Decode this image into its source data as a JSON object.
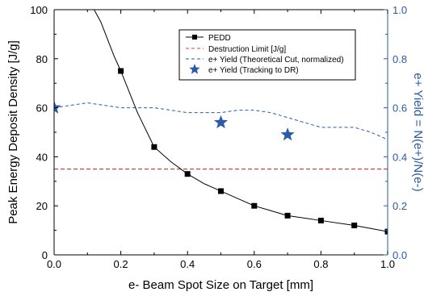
{
  "chart_data": {
    "type": "line",
    "title": "",
    "xlabel": "e- Beam Spot Size on Target [mm]",
    "ylabel": "Peak Energy Deposit Density [J/g]",
    "y2label": "e+ Yield = N(e+)/N(e-)",
    "xlim": [
      0,
      1.0
    ],
    "ylim": [
      0,
      100
    ],
    "y2lim": [
      0,
      1.0
    ],
    "x_ticks": [
      "0.0",
      "0.2",
      "0.4",
      "0.6",
      "0.8",
      "1.0"
    ],
    "y_ticks": [
      "0",
      "20",
      "40",
      "60",
      "80",
      "100"
    ],
    "y2_ticks": [
      "0.0",
      "0.2",
      "0.4",
      "0.6",
      "0.8",
      "1.0"
    ],
    "legend_position": "top-right",
    "series": [
      {
        "name": "PEDD",
        "axis": "left",
        "style": "line-square-marker",
        "color": "#000000",
        "marker_x": [
          0.2,
          0.3,
          0.4,
          0.5,
          0.6,
          0.7,
          0.8,
          0.9,
          1.0
        ],
        "marker_y": [
          75,
          44,
          33,
          26,
          20,
          16,
          14,
          12,
          9.5
        ],
        "curve_x": [
          0.12,
          0.14,
          0.16,
          0.18,
          0.2,
          0.25,
          0.3,
          0.35,
          0.4,
          0.45,
          0.5,
          0.55,
          0.6,
          0.65,
          0.7,
          0.8,
          0.9,
          1.0
        ],
        "curve_y": [
          100,
          95,
          88,
          81,
          75,
          58,
          44,
          38,
          33,
          29,
          26,
          23,
          20,
          18,
          16,
          14,
          12,
          9.5
        ]
      },
      {
        "name": "Destruction Limit [J/g]",
        "axis": "left",
        "style": "dashed",
        "color": "#e04040",
        "x": [
          0.0,
          1.0
        ],
        "y": [
          35,
          35
        ]
      },
      {
        "name": "e+ Yield (Theoretical Cut, normalized)",
        "axis": "right",
        "style": "dashed",
        "color": "#2a5aa8",
        "x": [
          0.0,
          0.05,
          0.1,
          0.15,
          0.2,
          0.25,
          0.3,
          0.35,
          0.4,
          0.45,
          0.5,
          0.55,
          0.6,
          0.65,
          0.7,
          0.75,
          0.8,
          0.85,
          0.9,
          0.95,
          1.0
        ],
        "y": [
          0.6,
          0.61,
          0.62,
          0.61,
          0.6,
          0.6,
          0.6,
          0.59,
          0.58,
          0.58,
          0.58,
          0.59,
          0.59,
          0.58,
          0.56,
          0.54,
          0.52,
          0.52,
          0.52,
          0.5,
          0.47
        ]
      },
      {
        "name": "e+ Yield (Tracking to DR)",
        "axis": "right",
        "style": "star-marker",
        "color": "#2a5aa8",
        "x": [
          0.0,
          0.5,
          0.7
        ],
        "y": [
          0.6,
          0.54,
          0.49
        ]
      }
    ]
  }
}
